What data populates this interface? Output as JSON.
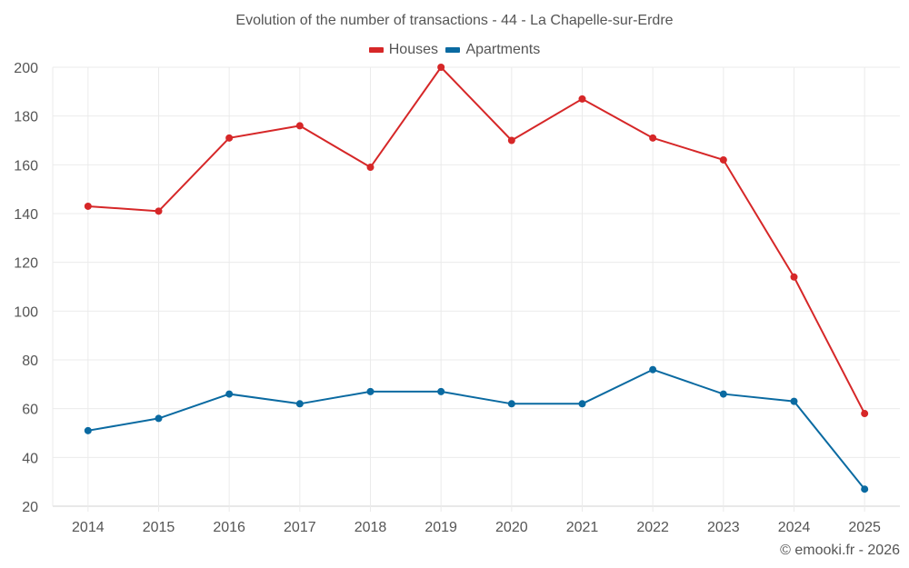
{
  "chart_data": {
    "type": "line",
    "title": "Evolution of the number of transactions - 44 - La Chapelle-sur-Erdre",
    "xlabel": "",
    "ylabel": "",
    "categories": [
      "2014",
      "2015",
      "2016",
      "2017",
      "2018",
      "2019",
      "2020",
      "2021",
      "2022",
      "2023",
      "2024",
      "2025"
    ],
    "series": [
      {
        "name": "Houses",
        "color": "#d62728",
        "values": [
          143,
          141,
          171,
          176,
          159,
          200,
          170,
          187,
          171,
          162,
          114,
          58
        ]
      },
      {
        "name": "Apartments",
        "color": "#0a6aa1",
        "values": [
          51,
          56,
          66,
          62,
          67,
          67,
          62,
          62,
          76,
          66,
          63,
          27
        ]
      }
    ],
    "ylim": [
      20,
      200
    ],
    "yticks": [
      20,
      40,
      60,
      80,
      100,
      120,
      140,
      160,
      180,
      200
    ],
    "grid": true,
    "legend_position": "top-center"
  },
  "footer": {
    "credit": "© emooki.fr - 2026"
  }
}
